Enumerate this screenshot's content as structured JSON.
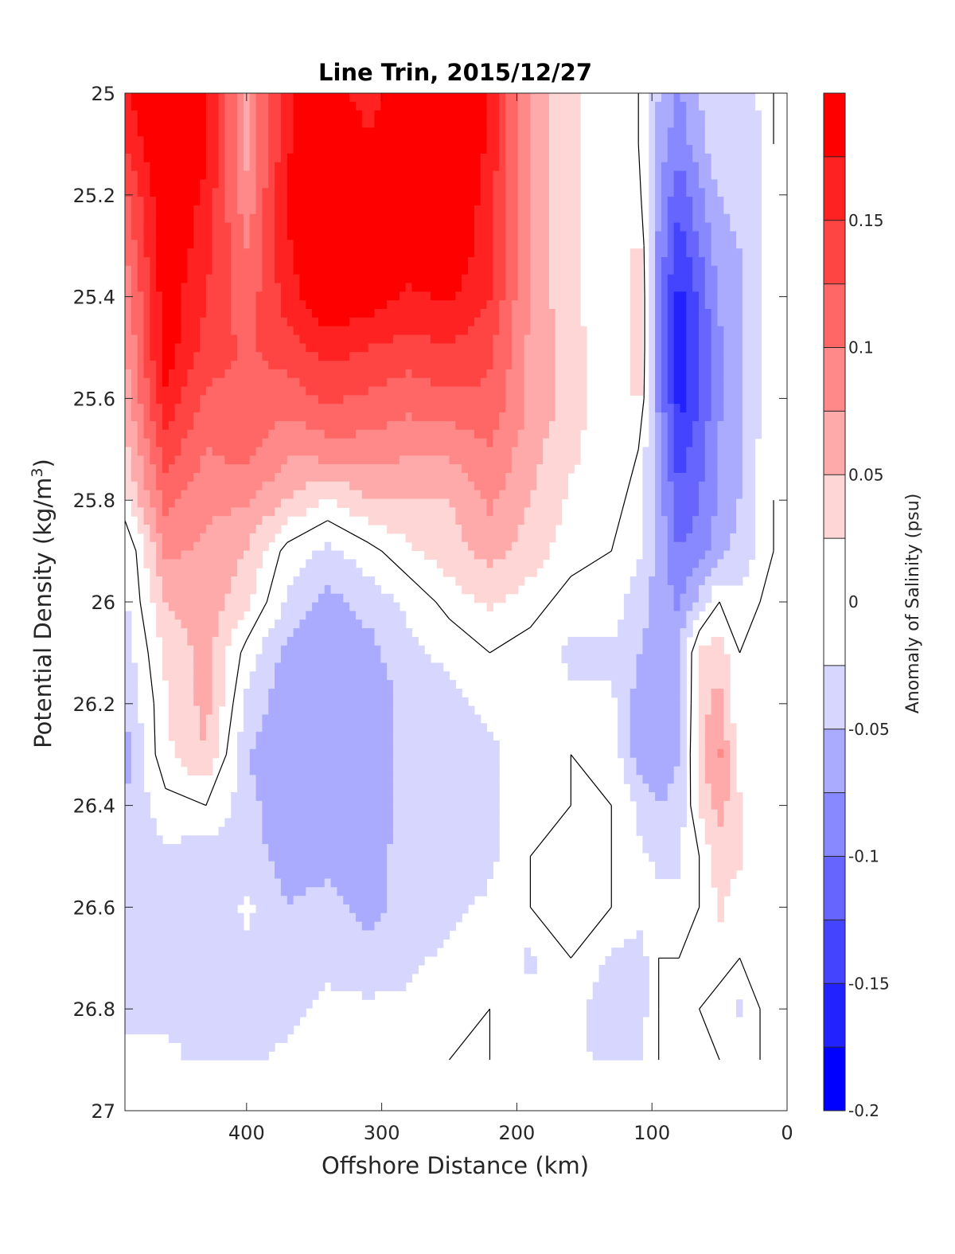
{
  "chart_data": {
    "type": "heatmap",
    "subtype": "filled-contour",
    "title": "Line Trin, 2015/12/27",
    "xlabel": "Offshore Distance (km)",
    "ylabel_main": "Potential Density (kg/m",
    "ylabel_sup": "3",
    "ylabel_end": ")",
    "colorbar_label": "Anomaly of Salinity (psu)",
    "xlim": [
      490,
      0
    ],
    "ylim": [
      25,
      27
    ],
    "x_reversed": true,
    "y_reversed": true,
    "x_ticks": [
      400,
      300,
      200,
      100,
      0
    ],
    "x_tick_labels": [
      "400",
      "300",
      "200",
      "100",
      "0"
    ],
    "y_ticks": [
      25,
      25.2,
      25.4,
      25.6,
      25.8,
      26,
      26.2,
      26.4,
      26.6,
      26.8,
      27
    ],
    "y_tick_labels": [
      "25",
      "25.2",
      "25.4",
      "25.6",
      "25.8",
      "26",
      "26.2",
      "26.4",
      "26.6",
      "26.8",
      "27"
    ],
    "colorbar_range": [
      -0.2,
      0.2
    ],
    "colorbar_ticks": [
      -0.2,
      -0.15,
      -0.1,
      -0.05,
      0,
      0.05,
      0.1,
      0.15
    ],
    "colorbar_tick_labels": [
      "-0.2",
      "-0.15",
      "-0.1",
      "-0.05",
      "0",
      "0.05",
      "0.1",
      "0.15"
    ],
    "levels": [
      -0.2,
      -0.175,
      -0.15,
      -0.125,
      -0.1,
      -0.075,
      -0.05,
      -0.025,
      0.025,
      0.05,
      0.075,
      0.1,
      0.125,
      0.15,
      0.175,
      0.2
    ],
    "level_colors": [
      "#0000ff",
      "#2222ff",
      "#4444ff",
      "#6666ff",
      "#8888ff",
      "#aaaaff",
      "#d6d6ff",
      "#ffffff",
      "#ffd6d6",
      "#ffaaaa",
      "#ff8888",
      "#ff6666",
      "#ff4444",
      "#ff2222",
      "#ff0000"
    ],
    "data_bottom_density": 26.9,
    "grid": false,
    "anomaly_field": {
      "x_km": [
        490,
        460,
        430,
        400,
        370,
        340,
        310,
        280,
        250,
        220,
        190,
        160,
        130,
        110,
        95,
        80,
        65,
        50,
        35,
        20,
        10
      ],
      "density": [
        25.0,
        25.1,
        25.2,
        25.3,
        25.4,
        25.5,
        25.6,
        25.7,
        25.8,
        25.9,
        26.0,
        26.1,
        26.2,
        26.3,
        26.4,
        26.5,
        26.6,
        26.7,
        26.8,
        26.9
      ],
      "values_psu": [
        [
          0.17,
          0.21,
          0.18,
          0.07,
          0.17,
          0.19,
          0.16,
          0.2,
          0.22,
          0.17,
          0.07,
          0.03,
          0.0,
          0.0,
          -0.05,
          -0.08,
          -0.05,
          -0.03,
          -0.04,
          -0.02,
          0.0
        ],
        [
          0.15,
          0.21,
          0.18,
          0.07,
          0.17,
          0.21,
          0.18,
          0.2,
          0.22,
          0.17,
          0.07,
          0.03,
          0.0,
          0.0,
          -0.06,
          -0.09,
          -0.06,
          -0.03,
          -0.04,
          -0.03,
          0.0
        ],
        [
          0.12,
          0.2,
          0.17,
          0.08,
          0.18,
          0.22,
          0.2,
          0.2,
          0.21,
          0.16,
          0.07,
          0.03,
          0.0,
          0.01,
          -0.07,
          -0.12,
          -0.08,
          -0.05,
          -0.04,
          -0.03,
          -0.01
        ],
        [
          0.1,
          0.2,
          0.16,
          0.1,
          0.17,
          0.22,
          0.2,
          0.19,
          0.2,
          0.16,
          0.07,
          0.03,
          0.0,
          0.03,
          -0.08,
          -0.14,
          -0.1,
          -0.06,
          -0.05,
          -0.03,
          -0.01
        ],
        [
          0.08,
          0.19,
          0.15,
          0.11,
          0.16,
          0.2,
          0.19,
          0.17,
          0.18,
          0.15,
          0.07,
          0.03,
          0.0,
          0.04,
          -0.09,
          -0.16,
          -0.12,
          -0.07,
          -0.05,
          -0.03,
          -0.01
        ],
        [
          0.07,
          0.19,
          0.14,
          0.12,
          0.14,
          0.16,
          0.15,
          0.14,
          0.15,
          0.13,
          0.07,
          0.04,
          0.0,
          0.04,
          -0.09,
          -0.17,
          -0.13,
          -0.08,
          -0.05,
          -0.03,
          -0.01
        ],
        [
          0.06,
          0.17,
          0.12,
          0.12,
          0.11,
          0.13,
          0.12,
          0.11,
          0.12,
          0.12,
          0.07,
          0.04,
          0.0,
          0.03,
          -0.08,
          -0.16,
          -0.13,
          -0.08,
          -0.05,
          -0.03,
          -0.01
        ],
        [
          0.04,
          0.14,
          0.1,
          0.11,
          0.08,
          0.09,
          0.09,
          0.08,
          0.08,
          0.1,
          0.06,
          0.03,
          0.01,
          0.0,
          -0.07,
          -0.14,
          -0.11,
          -0.07,
          -0.05,
          -0.02,
          -0.01
        ],
        [
          0.02,
          0.11,
          0.08,
          0.08,
          0.05,
          0.02,
          0.05,
          0.05,
          0.05,
          0.08,
          0.05,
          0.02,
          0.01,
          -0.01,
          -0.06,
          -0.12,
          -0.1,
          -0.07,
          -0.05,
          -0.02,
          0.0
        ],
        [
          -0.03,
          0.08,
          0.07,
          0.05,
          -0.01,
          -0.03,
          -0.01,
          0.02,
          0.04,
          0.06,
          0.04,
          0.01,
          0.0,
          -0.02,
          -0.06,
          -0.1,
          -0.09,
          -0.06,
          -0.04,
          -0.02,
          0.0
        ],
        [
          -0.03,
          0.05,
          0.07,
          0.03,
          -0.03,
          -0.06,
          -0.04,
          -0.02,
          0.01,
          0.03,
          0.01,
          -0.01,
          -0.01,
          -0.04,
          -0.06,
          -0.08,
          -0.04,
          0.0,
          -0.02,
          0.0,
          0.0
        ],
        [
          -0.04,
          0.03,
          0.06,
          -0.01,
          -0.06,
          -0.07,
          -0.06,
          -0.03,
          -0.02,
          0.0,
          -0.01,
          -0.03,
          -0.03,
          -0.05,
          -0.06,
          -0.05,
          0.03,
          0.04,
          0.0,
          0.0,
          0.0
        ],
        [
          -0.05,
          0.02,
          0.06,
          -0.03,
          -0.07,
          -0.07,
          -0.07,
          -0.04,
          -0.03,
          -0.02,
          -0.01,
          -0.02,
          -0.02,
          -0.06,
          -0.07,
          -0.06,
          0.04,
          0.06,
          0.0,
          0.0,
          0.0
        ],
        [
          -0.06,
          0.02,
          0.05,
          -0.05,
          -0.07,
          -0.07,
          -0.07,
          -0.04,
          -0.04,
          -0.03,
          -0.01,
          0.0,
          -0.01,
          -0.06,
          -0.07,
          -0.05,
          0.04,
          0.08,
          0.01,
          0.0,
          0.0
        ],
        [
          -0.05,
          -0.01,
          0.0,
          -0.04,
          -0.07,
          -0.06,
          -0.07,
          -0.04,
          -0.04,
          -0.03,
          -0.01,
          0.0,
          0.0,
          -0.03,
          -0.05,
          -0.04,
          0.03,
          0.06,
          0.03,
          0.0,
          0.0
        ],
        [
          -0.04,
          -0.03,
          -0.04,
          -0.04,
          -0.06,
          -0.06,
          -0.06,
          -0.04,
          -0.05,
          -0.03,
          0.0,
          0.0,
          0.0,
          -0.02,
          -0.03,
          -0.03,
          0.0,
          0.04,
          0.03,
          0.0,
          0.0
        ],
        [
          -0.03,
          -0.03,
          -0.05,
          -0.02,
          -0.05,
          -0.04,
          -0.06,
          -0.04,
          -0.03,
          -0.02,
          0.0,
          0.0,
          0.0,
          -0.01,
          -0.02,
          -0.02,
          0.0,
          0.03,
          0.01,
          0.0,
          0.0
        ],
        [
          -0.04,
          -0.03,
          -0.04,
          -0.03,
          -0.05,
          -0.03,
          -0.04,
          -0.03,
          -0.02,
          -0.01,
          -0.03,
          0.0,
          -0.03,
          -0.04,
          0.0,
          0.0,
          0.0,
          0.01,
          0.0,
          0.0,
          0.0
        ],
        [
          -0.03,
          -0.03,
          -0.03,
          -0.04,
          -0.03,
          -0.02,
          -0.02,
          -0.02,
          -0.01,
          0.0,
          -0.02,
          -0.01,
          -0.05,
          -0.04,
          0.0,
          0.0,
          0.0,
          -0.01,
          -0.03,
          0.0,
          0.0
        ],
        [
          -0.02,
          -0.02,
          -0.03,
          -0.03,
          -0.02,
          -0.01,
          -0.01,
          -0.01,
          0.0,
          0.0,
          -0.01,
          -0.01,
          -0.04,
          -0.03,
          0.0,
          0.0,
          0.0,
          0.0,
          -0.01,
          0.0,
          0.0
        ]
      ]
    }
  }
}
